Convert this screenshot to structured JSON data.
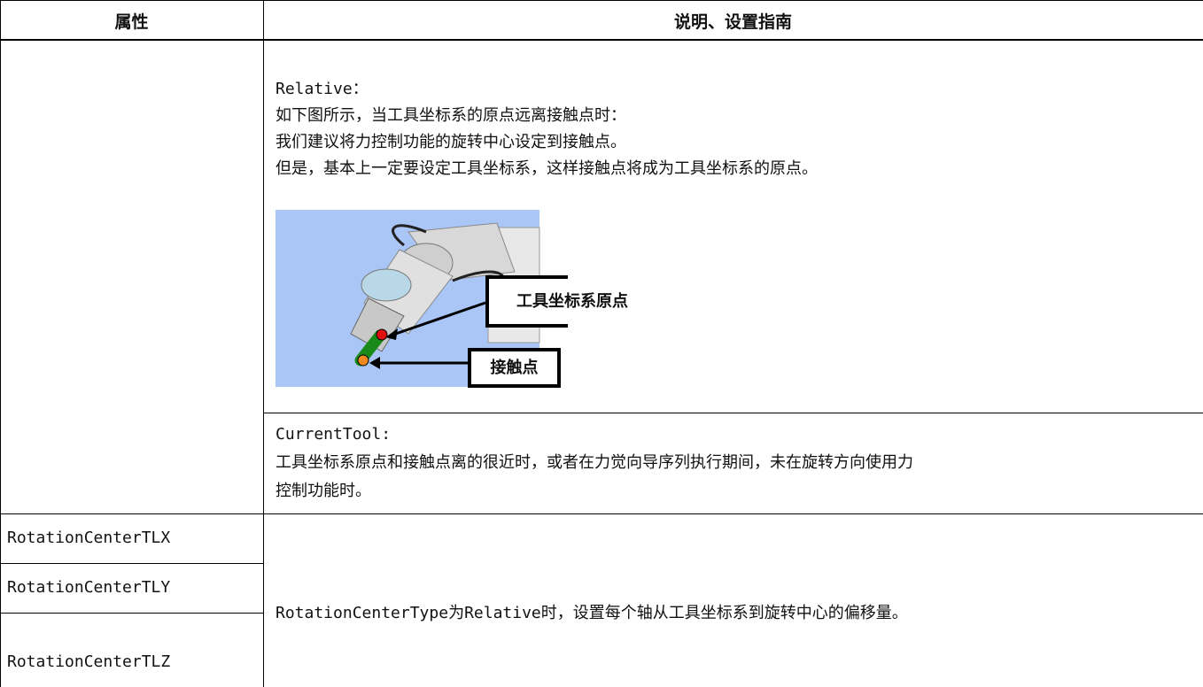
{
  "table": {
    "headers": [
      "属性",
      "说明、设置指南"
    ],
    "relative": {
      "title": "Relative：",
      "lines": [
        "如下图所示，当工具坐标系的原点远离接触点时：",
        "我们建议将力控制功能的旋转中心设定到接触点。",
        "但是，基本上一定要设定工具坐标系，这样接触点将成为工具坐标系的原点。"
      ],
      "figure_labels": [
        "工具坐标系原点",
        "接触点"
      ]
    },
    "current_tool": {
      "title": "CurrentTool:",
      "lines": [
        "工具坐标系原点和接触点离的很近时，或者在力觉向导序列执行期间，未在旋转方向使用力",
        "控制功能时。"
      ]
    },
    "properties": [
      "RotationCenterTLX",
      "RotationCenterTLY",
      "RotationCenterTLZ"
    ],
    "description": "RotationCenterType为Relative时，设置每个轴从工具坐标系到旋转中心的偏移量。"
  }
}
